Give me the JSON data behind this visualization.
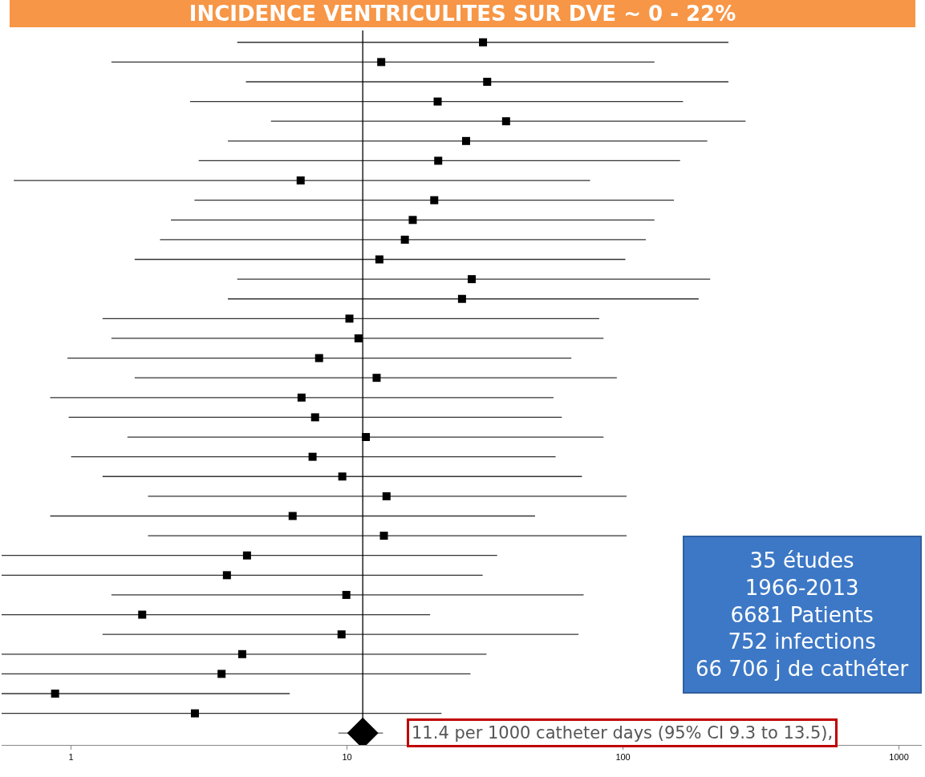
{
  "chart_data": {
    "type": "scatter",
    "orientation": "horizontal",
    "title": "INCIDENCE VENTRICULITES SUR DVE ~ 0 - 22%",
    "categories": [
      null,
      null,
      null,
      null,
      null,
      null,
      null,
      null,
      null,
      null,
      null,
      null,
      null,
      null,
      null,
      null,
      null,
      null,
      null,
      null,
      null,
      null,
      null,
      null,
      null,
      null,
      null,
      null,
      null,
      null,
      null,
      null,
      null,
      null,
      null,
      null
    ],
    "series": [
      {
        "color": "#000000",
        "values": [
          31.1,
          13.3,
          32.2,
          21.3,
          37.7,
          27.0,
          21.4,
          6.79,
          20.7,
          17.3,
          16.2,
          13.1,
          28.3,
          26.1,
          10.2,
          11.0,
          7.92,
          12.8,
          6.84,
          7.66,
          11.7,
          7.5,
          9.61,
          13.9,
          6.35,
          13.6,
          4.34,
          3.67,
          9.94,
          1.81,
          9.55,
          4.17,
          3.51,
          0.875,
          2.81,
          null
        ],
        "errors": [
          [
            4.0,
            241
          ],
          [
            1.4,
            130
          ],
          [
            4.3,
            241
          ],
          [
            2.7,
            165
          ],
          [
            5.3,
            278
          ],
          [
            3.7,
            202
          ],
          [
            2.9,
            161
          ],
          [
            0.62,
            76
          ],
          [
            2.8,
            153
          ],
          [
            2.3,
            130
          ],
          [
            2.1,
            121
          ],
          [
            1.7,
            102
          ],
          [
            4.0,
            207
          ],
          [
            3.7,
            188
          ],
          [
            1.3,
            82
          ],
          [
            1.4,
            85
          ],
          [
            0.97,
            65
          ],
          [
            1.7,
            95
          ],
          [
            0.84,
            56
          ],
          [
            0.98,
            60
          ],
          [
            1.6,
            85
          ],
          [
            1.0,
            57
          ],
          [
            1.3,
            71
          ],
          [
            1.9,
            103
          ],
          [
            0.84,
            48
          ],
          [
            1.9,
            103
          ],
          [
            0.56,
            35
          ],
          [
            0.56,
            31
          ],
          [
            1.4,
            72
          ],
          [
            0.56,
            20
          ],
          [
            1.3,
            69
          ],
          [
            0.56,
            32
          ],
          [
            0.56,
            28
          ],
          [
            0.56,
            6.2
          ],
          [
            0.56,
            22
          ],
          null
        ]
      },
      {
        "color": "#000000",
        "marker": "diamond",
        "values": [
          null,
          null,
          null,
          null,
          null,
          null,
          null,
          null,
          null,
          null,
          null,
          null,
          null,
          null,
          null,
          null,
          null,
          null,
          null,
          null,
          null,
          null,
          null,
          null,
          null,
          null,
          null,
          null,
          null,
          null,
          null,
          null,
          null,
          null,
          null,
          11.4
        ],
        "errors": [
          null,
          null,
          null,
          null,
          null,
          null,
          null,
          null,
          null,
          null,
          null,
          null,
          null,
          null,
          null,
          null,
          null,
          null,
          null,
          null,
          null,
          null,
          null,
          null,
          null,
          null,
          null,
          null,
          null,
          null,
          null,
          null,
          null,
          null,
          null,
          [
            9.3,
            13.5
          ]
        ]
      }
    ],
    "marker": "square",
    "log": "x",
    "xlim": [
      0.56,
      1210
    ],
    "xticks": [
      1,
      10,
      100,
      1000
    ],
    "tick_labels": "x",
    "ref_lines": [
      {
        "axis": "x",
        "value": 11.4,
        "color": "#000000"
      }
    ],
    "annotations": [
      "35 études\n1966-2013\n6681 Patients\n752 infections\n66 706 j de cathéter",
      "11.4 per 1000 catheter days (95% CI 9.3 to 13.5),"
    ]
  }
}
